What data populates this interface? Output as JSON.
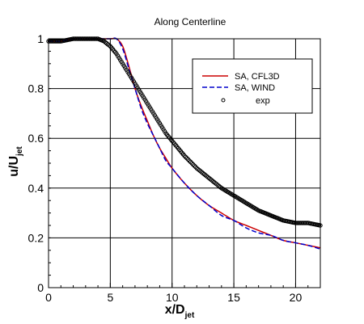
{
  "chart_data": {
    "type": "line",
    "title": "Along Centerline",
    "xlabel": {
      "main": "x/D",
      "sub": "jet"
    },
    "ylabel": {
      "main": "u/U",
      "sub": "jet"
    },
    "xlim": [
      0,
      22
    ],
    "ylim": [
      0,
      1
    ],
    "xticks": [
      0,
      5,
      10,
      15,
      20
    ],
    "yticks": [
      0,
      0.2,
      0.4,
      0.6,
      0.8,
      1
    ],
    "xtick_labels": [
      "0",
      "5",
      "10",
      "15",
      "20"
    ],
    "ytick_labels": [
      "0",
      "0.2",
      "0.4",
      "0.6",
      "0.8",
      "1"
    ],
    "grid": true,
    "legend_position": "top-right",
    "series": [
      {
        "name": "SA, CFL3D",
        "style": "solid",
        "color": "#cc0000",
        "x": [
          0,
          0.5,
          1,
          2,
          3,
          4,
          5,
          5.5,
          6,
          6.5,
          7,
          7.5,
          8,
          8.5,
          9,
          9.5,
          10,
          11,
          12,
          13,
          14,
          15,
          16,
          17,
          18,
          19,
          20,
          21,
          22
        ],
        "y": [
          0.99,
          0.99,
          0.99,
          1.0,
          1.0,
          1.0,
          1.0,
          1.0,
          0.97,
          0.89,
          0.8,
          0.73,
          0.67,
          0.61,
          0.56,
          0.52,
          0.48,
          0.42,
          0.37,
          0.33,
          0.3,
          0.27,
          0.25,
          0.23,
          0.21,
          0.19,
          0.18,
          0.17,
          0.16
        ]
      },
      {
        "name": "SA, WIND",
        "style": "dashed",
        "color": "#0000cc",
        "x": [
          0,
          0.5,
          1,
          2,
          3,
          4,
          5,
          5.5,
          6,
          6.5,
          7,
          7.5,
          8,
          8.5,
          9,
          9.5,
          10,
          11,
          12,
          13,
          14,
          15,
          16,
          17,
          18,
          19,
          20,
          21,
          22
        ],
        "y": [
          0.99,
          0.99,
          0.99,
          1.0,
          1.0,
          1.0,
          1.0,
          1.0,
          0.96,
          0.88,
          0.8,
          0.72,
          0.66,
          0.61,
          0.56,
          0.51,
          0.48,
          0.42,
          0.37,
          0.33,
          0.29,
          0.27,
          0.24,
          0.22,
          0.21,
          0.19,
          0.18,
          0.17,
          0.155
        ]
      },
      {
        "name": "exp",
        "style": "markers",
        "color": "#000000",
        "x": [
          0,
          1,
          2,
          3,
          3.5,
          4,
          4.5,
          5,
          5.5,
          6,
          6.5,
          7,
          7.5,
          8,
          8.5,
          9,
          9.5,
          10,
          11,
          12,
          13,
          14,
          15,
          16,
          17,
          18,
          19,
          19.5,
          20,
          21,
          22
        ],
        "y": [
          0.99,
          0.99,
          1.0,
          1.0,
          1.0,
          1.0,
          0.99,
          0.97,
          0.94,
          0.9,
          0.86,
          0.82,
          0.78,
          0.74,
          0.7,
          0.66,
          0.62,
          0.59,
          0.53,
          0.48,
          0.44,
          0.4,
          0.37,
          0.34,
          0.31,
          0.29,
          0.27,
          0.265,
          0.26,
          0.26,
          0.25
        ]
      }
    ]
  }
}
